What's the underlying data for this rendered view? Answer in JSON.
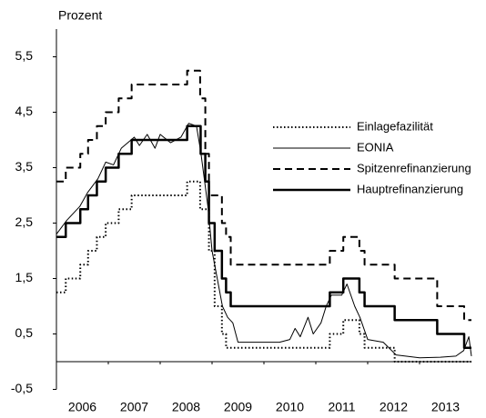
{
  "chart_data": {
    "type": "line",
    "y_label": "Prozent",
    "xlim": [
      2006,
      2014
    ],
    "xticks": [
      2006,
      2007,
      2008,
      2009,
      2010,
      2011,
      2012,
      2013
    ],
    "ylim": [
      -0.5,
      6
    ],
    "yticks": [
      {
        "value": -0.5,
        "label": "-0,5"
      },
      {
        "value": 0.5,
        "label": "0,5"
      },
      {
        "value": 1.5,
        "label": "1,5"
      },
      {
        "value": 2.5,
        "label": "2,5"
      },
      {
        "value": 3.5,
        "label": "3,5"
      },
      {
        "value": 4.5,
        "label": "4,5"
      },
      {
        "value": 5.5,
        "label": "5,5"
      }
    ],
    "series": [
      {
        "name": "Einlagefazilität",
        "color": "#000000",
        "style": "dotted",
        "x": [
          2006.0,
          2006.18,
          2006.18,
          2006.46,
          2006.46,
          2006.61,
          2006.61,
          2006.78,
          2006.78,
          2006.95,
          2006.95,
          2007.2,
          2007.2,
          2007.45,
          2007.45,
          2008.52,
          2008.52,
          2008.77,
          2008.77,
          2008.94,
          2008.94,
          2009.05,
          2009.05,
          2009.19,
          2009.19,
          2009.27,
          2009.27,
          2011.27,
          2011.27,
          2011.53,
          2011.53,
          2011.84,
          2011.84,
          2011.94,
          2011.94,
          2012.52,
          2012.52,
          2014.0
        ],
        "values": [
          1.25,
          1.25,
          1.5,
          1.5,
          1.75,
          1.75,
          2.0,
          2.0,
          2.25,
          2.25,
          2.5,
          2.5,
          2.75,
          2.75,
          3.0,
          3.0,
          3.25,
          3.25,
          2.75,
          2.75,
          2.0,
          2.0,
          1.0,
          1.0,
          0.5,
          0.5,
          0.25,
          0.25,
          0.5,
          0.5,
          0.75,
          0.75,
          0.5,
          0.5,
          0.25,
          0.25,
          0.0,
          0.0
        ]
      },
      {
        "name": "EONIA",
        "color": "#000000",
        "style": "thin",
        "x": [
          2006.0,
          2006.2,
          2006.45,
          2006.6,
          2006.8,
          2006.95,
          2007.1,
          2007.25,
          2007.5,
          2007.6,
          2007.75,
          2007.9,
          2008.0,
          2008.2,
          2008.4,
          2008.55,
          2008.7,
          2008.78,
          2008.85,
          2008.92,
          2009.0,
          2009.1,
          2009.2,
          2009.3,
          2009.4,
          2009.5,
          2009.8,
          2010.0,
          2010.3,
          2010.5,
          2010.6,
          2010.7,
          2010.85,
          2010.95,
          2011.1,
          2011.2,
          2011.3,
          2011.5,
          2011.6,
          2011.75,
          2011.85,
          2012.0,
          2012.3,
          2012.55,
          2013.0,
          2013.4,
          2013.7,
          2013.85,
          2013.95,
          2014.0
        ],
        "values": [
          2.3,
          2.55,
          2.8,
          3.05,
          3.3,
          3.6,
          3.55,
          3.85,
          4.05,
          3.9,
          4.1,
          3.85,
          4.1,
          3.95,
          4.05,
          4.3,
          4.25,
          3.8,
          3.3,
          2.8,
          2.0,
          1.5,
          1.0,
          0.8,
          0.7,
          0.35,
          0.35,
          0.35,
          0.35,
          0.4,
          0.6,
          0.45,
          0.8,
          0.5,
          0.7,
          1.0,
          1.2,
          1.2,
          1.4,
          1.0,
          0.8,
          0.4,
          0.35,
          0.12,
          0.07,
          0.08,
          0.1,
          0.2,
          0.45,
          0.1
        ]
      },
      {
        "name": "Spitzenrefinanzierung",
        "color": "#000000",
        "style": "dashed",
        "x": [
          2006.0,
          2006.18,
          2006.18,
          2006.46,
          2006.46,
          2006.61,
          2006.61,
          2006.78,
          2006.78,
          2006.95,
          2006.95,
          2007.2,
          2007.2,
          2007.45,
          2007.45,
          2008.52,
          2008.52,
          2008.77,
          2008.77,
          2008.87,
          2008.87,
          2008.94,
          2008.94,
          2009.19,
          2009.19,
          2009.27,
          2009.27,
          2009.36,
          2009.36,
          2011.27,
          2011.27,
          2011.53,
          2011.53,
          2011.84,
          2011.84,
          2011.94,
          2011.94,
          2012.52,
          2012.52,
          2013.34,
          2013.34,
          2013.86,
          2013.86,
          2014.0
        ],
        "values": [
          3.25,
          3.25,
          3.5,
          3.5,
          3.75,
          3.75,
          4.0,
          4.0,
          4.25,
          4.25,
          4.5,
          4.5,
          4.75,
          4.75,
          5.0,
          5.0,
          5.25,
          5.25,
          4.75,
          4.75,
          3.75,
          3.75,
          3.0,
          3.0,
          2.5,
          2.5,
          2.25,
          2.25,
          1.75,
          1.75,
          2.0,
          2.0,
          2.25,
          2.25,
          2.0,
          2.0,
          1.75,
          1.75,
          1.5,
          1.5,
          1.0,
          1.0,
          0.75,
          0.75
        ]
      },
      {
        "name": "Hauptrefinanzierung",
        "color": "#000000",
        "style": "thick",
        "x": [
          2006.0,
          2006.18,
          2006.18,
          2006.46,
          2006.46,
          2006.61,
          2006.61,
          2006.78,
          2006.78,
          2006.95,
          2006.95,
          2007.2,
          2007.2,
          2007.45,
          2007.45,
          2008.52,
          2008.52,
          2008.78,
          2008.78,
          2008.87,
          2008.87,
          2008.94,
          2008.94,
          2009.05,
          2009.05,
          2009.19,
          2009.19,
          2009.27,
          2009.27,
          2009.36,
          2009.36,
          2011.27,
          2011.27,
          2011.53,
          2011.53,
          2011.84,
          2011.84,
          2011.94,
          2011.94,
          2012.52,
          2012.52,
          2013.34,
          2013.34,
          2013.86,
          2013.86,
          2014.0
        ],
        "values": [
          2.25,
          2.25,
          2.5,
          2.5,
          2.75,
          2.75,
          3.0,
          3.0,
          3.25,
          3.25,
          3.5,
          3.5,
          3.75,
          3.75,
          4.0,
          4.0,
          4.25,
          4.25,
          3.75,
          3.75,
          3.25,
          3.25,
          2.5,
          2.5,
          2.0,
          2.0,
          1.5,
          1.5,
          1.25,
          1.25,
          1.0,
          1.0,
          1.25,
          1.25,
          1.5,
          1.5,
          1.25,
          1.25,
          1.0,
          1.0,
          0.75,
          0.75,
          0.5,
          0.5,
          0.25,
          0.25
        ]
      }
    ]
  }
}
